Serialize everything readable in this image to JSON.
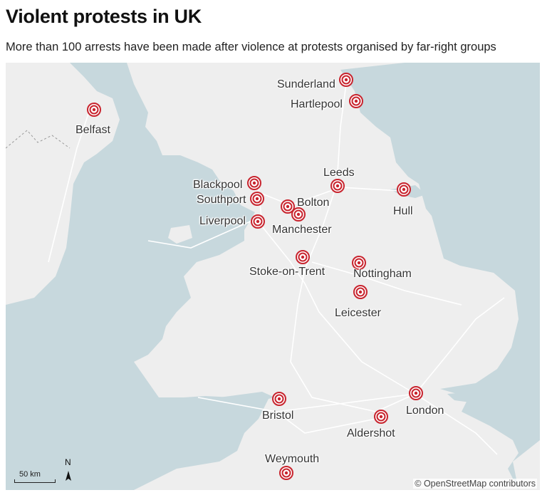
{
  "header": {
    "title": "Violent protests in UK",
    "subtitle": "More than 100 arrests have been made after violence at protests organised by far-right groups"
  },
  "map": {
    "attribution": "© OpenStreetMap contributors",
    "scale_label": "50 km",
    "north_label": "N",
    "colors": {
      "water": "#c7d8dd",
      "land": "#eeeeee",
      "marker": "#c8242e"
    },
    "locations": [
      {
        "name": "Sunderland"
      },
      {
        "name": "Hartlepool"
      },
      {
        "name": "Belfast"
      },
      {
        "name": "Leeds"
      },
      {
        "name": "Blackpool"
      },
      {
        "name": "Southport"
      },
      {
        "name": "Bolton"
      },
      {
        "name": "Liverpool"
      },
      {
        "name": "Manchester"
      },
      {
        "name": "Hull"
      },
      {
        "name": "Stoke-on-Trent"
      },
      {
        "name": "Nottingham"
      },
      {
        "name": "Leicester"
      },
      {
        "name": "Bristol"
      },
      {
        "name": "London"
      },
      {
        "name": "Aldershot"
      },
      {
        "name": "Weymouth"
      }
    ]
  }
}
